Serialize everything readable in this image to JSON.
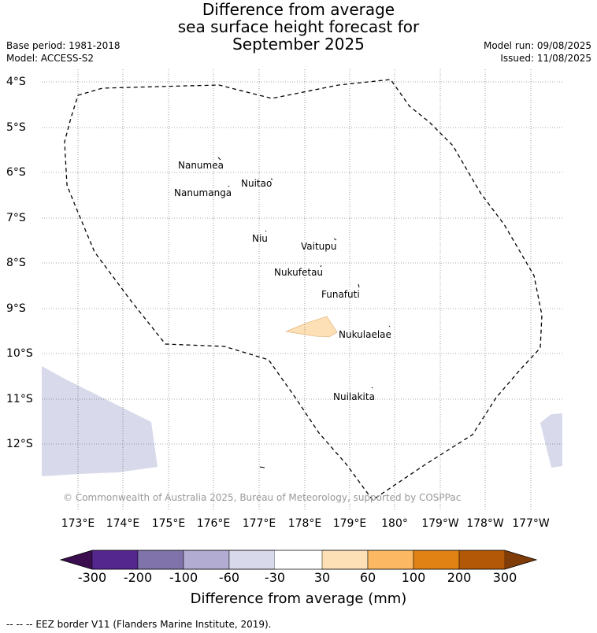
{
  "title": {
    "line1": "Difference from average",
    "line2": "sea surface height forecast for",
    "line3": "September 2025"
  },
  "meta": {
    "base_period": "Base period: 1981-2018",
    "model": "Model: ACCESS-S2",
    "model_run": "Model run: 09/08/2025",
    "issued": "Issued: 11/08/2025"
  },
  "latitudes": [
    "4°S",
    "5°S",
    "6°S",
    "7°S",
    "8°S",
    "9°S",
    "10°S",
    "11°S",
    "12°S"
  ],
  "longitudes": [
    "173°E",
    "174°E",
    "175°E",
    "176°E",
    "177°E",
    "178°E",
    "179°E",
    "180°",
    "179°W",
    "178°W",
    "177°W"
  ],
  "islands": [
    "Nanumea",
    "Nuitao",
    "Nanumanga",
    "Niu",
    "Vaitupu",
    "Nukufetau",
    "Funafuti",
    "Nukulaelae",
    "Nuilakita"
  ],
  "copyright": "© Commonwealth of Australia 2025, Bureau of Meteorology, supported by COSPPac",
  "colorbar": {
    "title": "Difference from average (mm)",
    "ticks": [
      "-300",
      "-200",
      "-100",
      "-60",
      "-30",
      "30",
      "60",
      "100",
      "200",
      "300"
    ],
    "bins": [
      {
        "from": "<-300",
        "color": "#3b0f4f"
      },
      {
        "from": "-300",
        "to": "-200",
        "color": "#54278f"
      },
      {
        "from": "-200",
        "to": "-100",
        "color": "#8073ac"
      },
      {
        "from": "-100",
        "to": "-60",
        "color": "#b2abd2"
      },
      {
        "from": "-60",
        "to": "-30",
        "color": "#d8daeb"
      },
      {
        "from": "-30",
        "to": "30",
        "color": "#ffffff"
      },
      {
        "from": "30",
        "to": "60",
        "color": "#fee0b6"
      },
      {
        "from": "60",
        "to": "100",
        "color": "#fdb863"
      },
      {
        "from": "100",
        "to": "200",
        "color": "#e08214"
      },
      {
        "from": "200",
        "to": "300",
        "color": "#b35806"
      },
      {
        "from": ">300",
        "color": "#7f3b08"
      }
    ]
  },
  "legend": "--  --  -- EEZ border V11 (Flanders Marine Institute, 2019)."
}
